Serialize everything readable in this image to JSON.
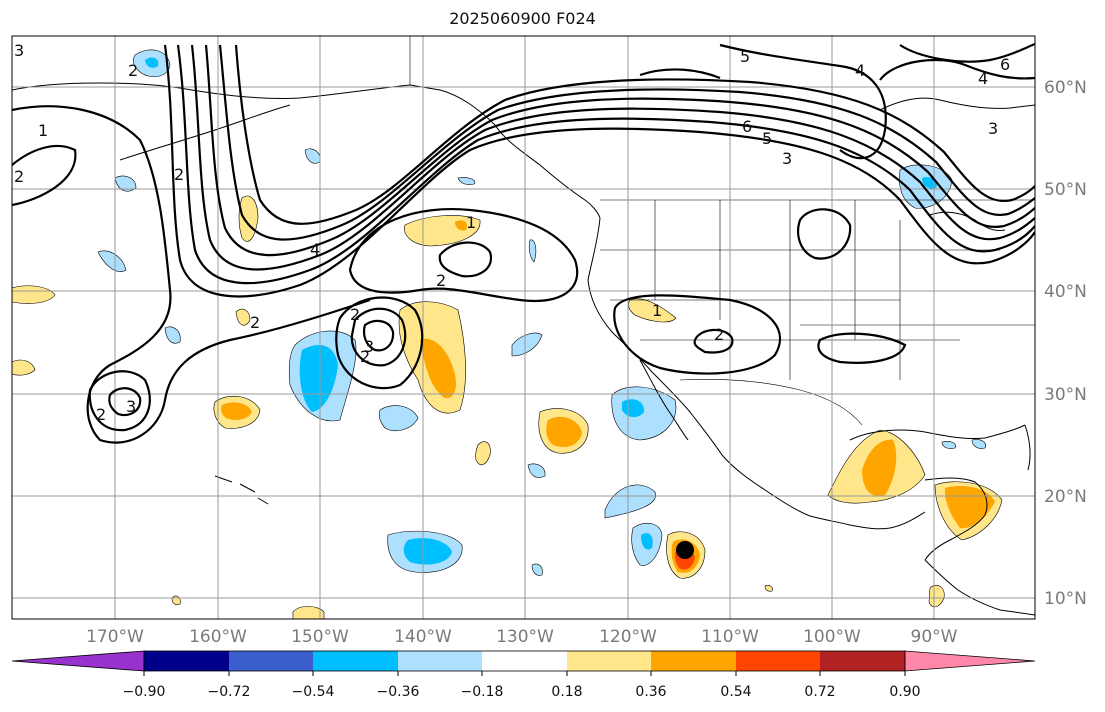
{
  "title": "2025060900 F024",
  "longitude_labels": [
    "170°W",
    "160°W",
    "150°W",
    "140°W",
    "130°W",
    "120°W",
    "110°W",
    "100°W",
    "90°W"
  ],
  "latitude_labels": [
    "60°N",
    "50°N",
    "40°N",
    "30°N",
    "20°N",
    "10°N"
  ],
  "colorbar": {
    "tick_labels": [
      "−0.90",
      "−0.72",
      "−0.54",
      "−0.36",
      "−0.18",
      "0.18",
      "0.36",
      "0.54",
      "0.72",
      "0.90"
    ],
    "colors": [
      "#9932CC",
      "#00008B",
      "#3A5FCD",
      "#00BFFF",
      "#ADDFFF",
      "#FFFFFF",
      "#FFE68A",
      "#FFA500",
      "#FF4500",
      "#B22222",
      "#FF88AA"
    ]
  },
  "contour_labels": [
    "3",
    "2",
    "1",
    "2",
    "4",
    "5",
    "6",
    "5",
    "3",
    "6",
    "4",
    "4",
    "3",
    "2",
    "2",
    "2",
    "1",
    "2",
    "3",
    "1",
    "2",
    "2",
    "2",
    "3"
  ],
  "marker": "black-dot-storm-center",
  "colors": {
    "land_outline": "#000000",
    "gridline": "#999999",
    "contour": "#000000"
  }
}
